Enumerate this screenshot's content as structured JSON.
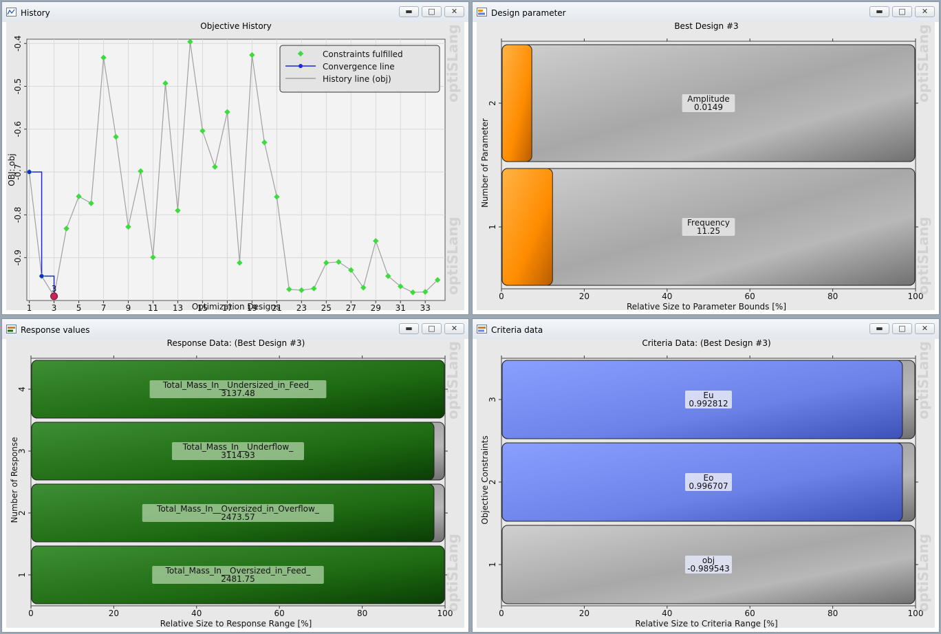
{
  "colors": {
    "history_marker": "#3cdc3c",
    "convergence": "#1c28d8",
    "history_line": "#a0a0a0",
    "best_marker": "#cc2255",
    "param_bar": "#ff8c00",
    "response_bar": "#1e6b12",
    "criteria_bar": "#6c82e8",
    "track": "#a6a6a6"
  },
  "watermark": "optiSLang",
  "windows": {
    "history": {
      "title": "History",
      "icon": "line-chart-icon",
      "chart_title": "Objective History",
      "xlabel": "Optimization Designs",
      "ylabel": "OBJ: obj",
      "legend": [
        "Constraints fulfilled",
        "Convergence line",
        "History line (obj)"
      ],
      "best_label": "3"
    },
    "design_parameter": {
      "title": "Design parameter",
      "icon": "parameter-chart-icon",
      "chart_title": "Best Design #3",
      "xlabel": "Relative Size to Parameter Bounds [%]",
      "ylabel": "Number of Parameter"
    },
    "response_values": {
      "title": "Response values",
      "icon": "response-chart-icon",
      "chart_title": "Response Data: (Best Design #3)",
      "xlabel": "Relative Size to Response Range [%]",
      "ylabel": "Number of Response"
    },
    "criteria_data": {
      "title": "Criteria data",
      "icon": "criteria-chart-icon",
      "chart_title": "Criteria Data: (Best Design #3)",
      "xlabel": "Relative Size to Criteria Range [%]",
      "ylabel": "Objective Constraints"
    }
  },
  "window_controls": {
    "minimize": "▬",
    "maximize": "□",
    "close": "✕"
  },
  "chart_data": [
    {
      "type": "line",
      "title": "Objective History",
      "xlabel": "Optimization Designs",
      "ylabel": "OBJ: obj",
      "xlim": [
        0.8,
        34.6
      ],
      "ylim": [
        -1.0,
        -0.39
      ],
      "xticks": [
        1,
        3,
        5,
        7,
        9,
        11,
        13,
        15,
        17,
        19,
        21,
        23,
        25,
        27,
        29,
        31,
        33
      ],
      "yticks": [
        -0.4,
        -0.5,
        -0.6,
        -0.7,
        -0.8,
        -0.9
      ],
      "ytick_labels": [
        "-0.4",
        "-0.5",
        "-0.6",
        "-0.7",
        "-0.8",
        "-0.9"
      ],
      "grid": true,
      "legend_position": "top-right",
      "series": [
        {
          "name": "History line (obj)",
          "x": [
            1,
            2,
            3,
            4,
            5,
            6,
            7,
            8,
            9,
            10,
            11,
            12,
            13,
            14,
            15,
            16,
            17,
            18,
            19,
            20,
            21,
            22,
            23,
            24,
            25,
            26,
            27,
            28,
            29,
            30,
            31,
            32,
            33,
            34
          ],
          "y": [
            -0.7,
            -0.943,
            -0.99,
            -0.832,
            -0.757,
            -0.773,
            -0.433,
            -0.618,
            -0.828,
            -0.698,
            -0.899,
            -0.493,
            -0.79,
            -0.396,
            -0.604,
            -0.688,
            -0.56,
            -0.912,
            -0.427,
            -0.631,
            -0.758,
            -0.974,
            -0.976,
            -0.972,
            -0.912,
            -0.91,
            -0.929,
            -0.97,
            -0.861,
            -0.943,
            -0.967,
            -0.981,
            -0.98,
            -0.952
          ]
        },
        {
          "name": "Convergence line",
          "x": [
            1,
            2,
            3
          ],
          "y": [
            -0.7,
            -0.943,
            -0.99
          ]
        }
      ]
    },
    {
      "type": "bar",
      "title": "Best Design #3",
      "xlabel": "Relative Size to Parameter Bounds [%]",
      "ylabel": "Number of Parameter",
      "xlim": [
        0,
        100
      ],
      "xticks": [
        0,
        20,
        40,
        60,
        80,
        100
      ],
      "categories": [
        "1",
        "2"
      ],
      "labels": [
        "Frequency",
        "Amplitude"
      ],
      "value_labels": [
        "11.25",
        "0.0149"
      ],
      "values": [
        12.5,
        7.5
      ]
    },
    {
      "type": "bar",
      "title": "Response Data: (Best Design #3)",
      "xlabel": "Relative Size to Response Range [%]",
      "ylabel": "Number of Response",
      "xlim": [
        0,
        100
      ],
      "xticks": [
        0,
        20,
        40,
        60,
        80,
        100
      ],
      "categories": [
        "1",
        "2",
        "3",
        "4"
      ],
      "labels": [
        "Total_Mass_In__Oversized_in_Feed_",
        "Total_Mass_In__Oversized_in_Overflow_",
        "Total_Mass_In__Underflow_",
        "Total_Mass_In__Undersized_in_Feed_"
      ],
      "value_labels": [
        "2481.75",
        "2473.57",
        "3114.93",
        "3137.48"
      ],
      "values": [
        100,
        97.5,
        97.5,
        100
      ]
    },
    {
      "type": "bar",
      "title": "Criteria Data: (Best Design #3)",
      "xlabel": "Relative Size to Criteria Range [%]",
      "ylabel": "Objective Constraints",
      "xlim": [
        0,
        100
      ],
      "xticks": [
        0,
        20,
        40,
        60,
        80,
        100
      ],
      "categories": [
        "1",
        "2",
        "3"
      ],
      "labels": [
        "obj",
        "Eo",
        "Eu"
      ],
      "value_labels": [
        "-0.989543",
        "0.996707",
        "0.992812"
      ],
      "values": [
        0,
        97,
        97
      ]
    }
  ]
}
